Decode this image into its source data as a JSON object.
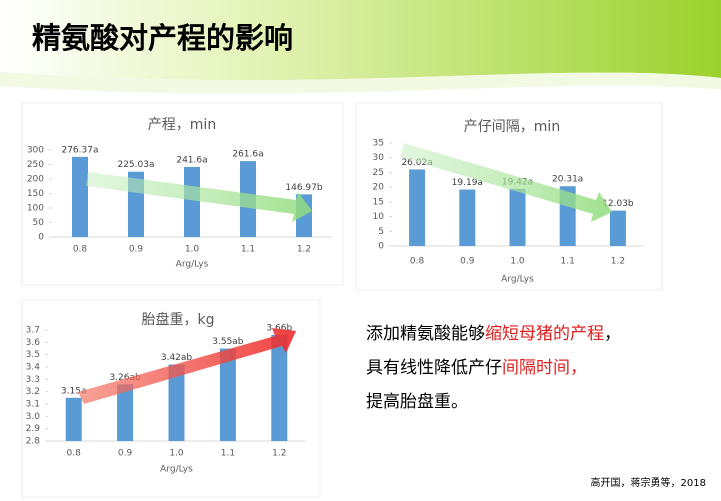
{
  "slide": {
    "title": "精氨酸对产程的影响",
    "text_lines": [
      [
        {
          "text": "添加精氨酸能够",
          "color": "#000000"
        },
        {
          "text": "缩短母猪的产程",
          "color": "#e02020"
        },
        {
          "text": "，",
          "color": "#000000"
        }
      ],
      [
        {
          "text": "具有线性降低产仔",
          "color": "#000000"
        },
        {
          "text": "间隔时间，",
          "color": "#e02020"
        }
      ],
      [
        {
          "text": "提高胎盘重。",
          "color": "#000000"
        }
      ]
    ],
    "citation": "高开国，蒋宗勇等，2018"
  },
  "chart_data": [
    {
      "type": "bar",
      "title": "产程，min",
      "x_label": "Arg/Lys",
      "categories": [
        "0.8",
        "0.9",
        "1.0",
        "1.1",
        "1.2"
      ],
      "values": [
        276.37,
        225.03,
        241.6,
        261.6,
        146.97
      ],
      "value_labels": [
        "276.37a",
        "225.03a",
        "241.6a",
        "261.6a",
        "146.97b"
      ],
      "color": "#5b9bd5",
      "ylim": [
        0,
        300
      ],
      "yticks": [
        0,
        50,
        100,
        150,
        200,
        250,
        300
      ],
      "grid": false
    },
    {
      "type": "bar",
      "title": "产仔间隔，min",
      "x_label": "Arg/Lys",
      "categories": [
        "0.8",
        "0.9",
        "1.0",
        "1.1",
        "1.2"
      ],
      "values": [
        26.02,
        19.19,
        19.42,
        20.31,
        12.03
      ],
      "value_labels": [
        "26.02a",
        "19.19a",
        "19.42a",
        "20.31a",
        "12.03b"
      ],
      "color": "#5b9bd5",
      "ylim": [
        0,
        35
      ],
      "yticks": [
        0,
        5,
        10,
        15,
        20,
        25,
        30,
        35
      ],
      "grid": false
    },
    {
      "type": "bar",
      "title": "胎盘重，kg",
      "x_label": "Arg/Lys",
      "categories": [
        "0.8",
        "0.9",
        "1.0",
        "1.1",
        "1.2"
      ],
      "values": [
        3.15,
        3.26,
        3.42,
        3.55,
        3.66
      ],
      "value_labels": [
        "3.15a",
        "3.26ab",
        "3.42ab",
        "3.55ab",
        "3.66b"
      ],
      "color": "#5b9bd5",
      "ylim": [
        2.8,
        3.7
      ],
      "yticks": [
        2.8,
        2.9,
        {
          "value": 3,
          "label": "3.0"
        },
        3.1,
        3.2,
        3.3,
        3.4,
        3.5,
        3.6,
        3.7
      ],
      "grid": false
    }
  ]
}
